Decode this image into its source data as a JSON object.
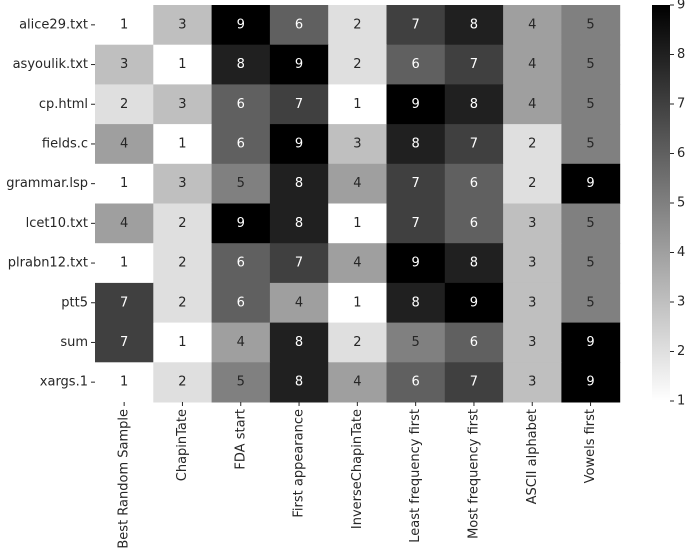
{
  "chart_data": {
    "type": "heatmap",
    "title": "",
    "xlabel": "",
    "ylabel": "",
    "rows": [
      "alice29.txt",
      "asyoulik.txt",
      "cp.html",
      "fields.c",
      "grammar.lsp",
      "lcet10.txt",
      "plrabn12.txt",
      "ptt5",
      "sum",
      "xargs.1"
    ],
    "columns": [
      "Best Random Sample",
      "ChapinTate",
      "FDA start",
      "First appearance",
      "InverseChapinTate",
      "Least frequency first",
      "Most frequency first",
      "ASCII alphabet",
      "Vowels first"
    ],
    "values": [
      [
        1,
        3,
        9,
        6,
        2,
        7,
        8,
        4,
        5
      ],
      [
        3,
        1,
        8,
        9,
        2,
        6,
        7,
        4,
        5
      ],
      [
        2,
        3,
        6,
        7,
        1,
        9,
        8,
        4,
        5
      ],
      [
        4,
        1,
        6,
        9,
        3,
        8,
        7,
        2,
        5
      ],
      [
        1,
        3,
        5,
        8,
        4,
        7,
        6,
        2,
        9
      ],
      [
        4,
        2,
        9,
        8,
        1,
        7,
        6,
        3,
        5
      ],
      [
        1,
        2,
        6,
        7,
        4,
        9,
        8,
        3,
        5
      ],
      [
        7,
        2,
        6,
        4,
        1,
        8,
        9,
        3,
        5
      ],
      [
        7,
        1,
        4,
        8,
        2,
        5,
        6,
        3,
        9
      ],
      [
        1,
        2,
        5,
        8,
        4,
        6,
        7,
        3,
        9
      ]
    ],
    "vmin": 1,
    "vmax": 9,
    "colormap": "Greys",
    "colorbar_ticks": [
      1,
      2,
      3,
      4,
      5,
      6,
      7,
      8,
      9
    ]
  }
}
